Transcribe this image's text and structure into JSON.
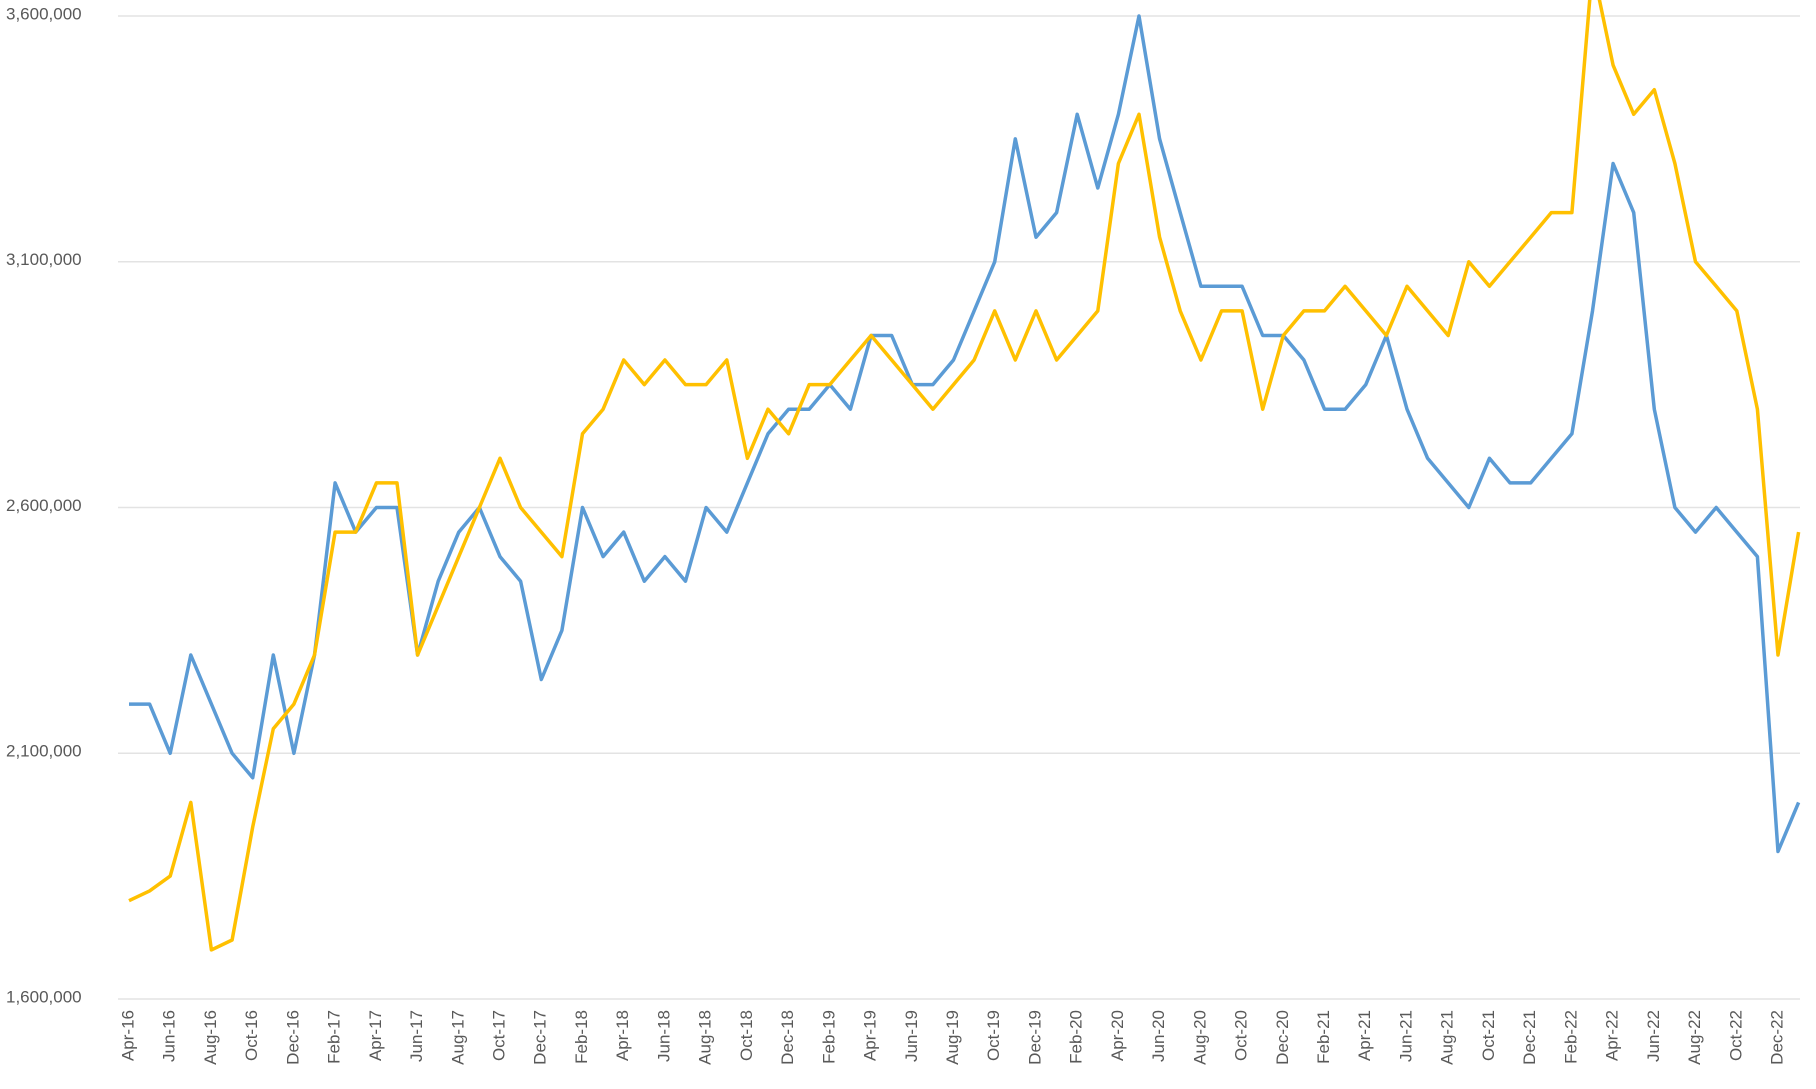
{
  "chart_data": {
    "type": "line",
    "categories": [
      "Apr-16",
      null,
      "Jun-16",
      null,
      "Aug-16",
      null,
      "Oct-16",
      null,
      "Dec-16",
      null,
      "Feb-17",
      null,
      "Apr-17",
      null,
      "Jun-17",
      null,
      "Aug-17",
      null,
      "Oct-17",
      null,
      "Dec-17",
      null,
      "Feb-18",
      null,
      "Apr-18",
      null,
      "Jun-18",
      null,
      "Aug-18",
      null,
      "Oct-18",
      null,
      "Dec-18",
      null,
      "Feb-19",
      null,
      "Apr-19",
      null,
      "Jun-19",
      null,
      "Aug-19",
      null,
      "Oct-19",
      null,
      "Dec-19",
      null,
      "Feb-20",
      null,
      "Apr-20",
      null,
      "Jun-20",
      null,
      "Aug-20",
      null,
      "Oct-20",
      null,
      "Dec-20",
      null,
      "Feb-21",
      null,
      "Apr-21",
      null,
      "Jun-21",
      null,
      "Aug-21",
      null,
      "Oct-21",
      null,
      "Dec-21",
      null,
      "Feb-22",
      null,
      "Apr-22",
      null,
      "Jun-22",
      null,
      "Aug-22",
      null,
      "Oct-22",
      null,
      "Dec-22",
      null
    ],
    "series": [
      {
        "color": "#5b9bd5",
        "values": [
          2200000,
          2200000,
          2100000,
          2300000,
          2200000,
          2100000,
          2050000,
          2300000,
          2100000,
          2300000,
          2650000,
          2550000,
          2600000,
          2600000,
          2300000,
          2450000,
          2550000,
          2600000,
          2500000,
          2450000,
          2250000,
          2350000,
          2600000,
          2500000,
          2550000,
          2450000,
          2500000,
          2450000,
          2600000,
          2550000,
          2650000,
          2750000,
          2800000,
          2800000,
          2850000,
          2800000,
          2950000,
          2950000,
          2850000,
          2850000,
          2900000,
          3000000,
          3100000,
          3350000,
          3150000,
          3200000,
          3400000,
          3250000,
          3400000,
          3600000,
          3350000,
          3200000,
          3050000,
          3050000,
          3050000,
          2950000,
          2950000,
          2900000,
          2800000,
          2800000,
          2850000,
          2950000,
          2800000,
          2700000,
          2650000,
          2600000,
          2700000,
          2650000,
          2650000,
          2700000,
          2750000,
          3000000,
          3300000,
          3200000,
          2800000,
          2600000,
          2550000,
          2600000,
          2550000,
          2500000,
          1900000,
          2000000
        ]
      },
      {
        "color": "#ffc000",
        "values": [
          1800000,
          1820000,
          1850000,
          2000000,
          1700000,
          1720000,
          1950000,
          2150000,
          2200000,
          2300000,
          2550000,
          2550000,
          2650000,
          2650000,
          2300000,
          2400000,
          2500000,
          2600000,
          2700000,
          2600000,
          2550000,
          2500000,
          2750000,
          2800000,
          2900000,
          2850000,
          2900000,
          2850000,
          2850000,
          2900000,
          2700000,
          2800000,
          2750000,
          2850000,
          2850000,
          2900000,
          2950000,
          2900000,
          2850000,
          2800000,
          2850000,
          2900000,
          3000000,
          2900000,
          3000000,
          2900000,
          2950000,
          3000000,
          3300000,
          3400000,
          3150000,
          3000000,
          2900000,
          3000000,
          3000000,
          2800000,
          2950000,
          3000000,
          3000000,
          3050000,
          3000000,
          2950000,
          3050000,
          3000000,
          2950000,
          3100000,
          3050000,
          3100000,
          3150000,
          3200000,
          3200000,
          3700000,
          3500000,
          3400000,
          3450000,
          3300000,
          3100000,
          3050000,
          3000000,
          2800000,
          2300000,
          2550000
        ]
      }
    ],
    "ylim": [
      1600000,
      3600000
    ],
    "yticks": [
      {
        "value": 1600000,
        "label": "1,600,000"
      },
      {
        "value": 2100000,
        "label": "2,100,000"
      },
      {
        "value": 2600000,
        "label": "2,600,000"
      },
      {
        "value": 3100000,
        "label": "3,100,000"
      },
      {
        "value": 3600000,
        "label": "3,600,000"
      }
    ],
    "grid": true
  }
}
